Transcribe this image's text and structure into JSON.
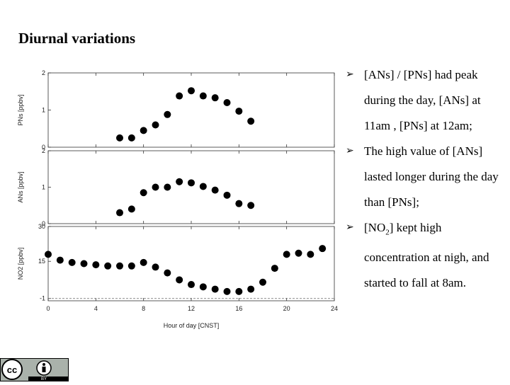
{
  "title": "Diurnal variations",
  "bullets": [
    {
      "parts": [
        "[ANs] / [PNs] had peak during the day, [ANs] at 11am , [PNs] at 12am;"
      ]
    },
    {
      "parts": [
        "The high value of [ANs] lasted longer during the day than [PNs];"
      ]
    },
    {
      "parts": [
        "[NO",
        "2",
        "] kept high concentration at nigh, and started to fall at 8am."
      ]
    }
  ],
  "bullet_marker": "➢",
  "license_badge": {
    "cc": "cc",
    "by": "BY"
  },
  "colors": {
    "pns": "#1f35d6",
    "ans": "#2a8a22",
    "no2": "#9b4a2a"
  },
  "chart_data": [
    {
      "type": "scatter",
      "name": "PNs",
      "ylabel": "PNs [ppbv]",
      "ylim": [
        0,
        2
      ],
      "yticks": [
        0,
        1,
        2
      ],
      "x": [
        6,
        7,
        8,
        9,
        10,
        11,
        12,
        13,
        14,
        15,
        16,
        17
      ],
      "y": [
        0.25,
        0.25,
        0.45,
        0.6,
        0.88,
        1.38,
        1.52,
        1.38,
        1.33,
        1.2,
        0.97,
        0.7
      ]
    },
    {
      "type": "scatter",
      "name": "ANs",
      "ylabel": "ANs [ppbv]",
      "ylim": [
        0,
        2
      ],
      "yticks": [
        0,
        1,
        2
      ],
      "x": [
        6,
        7,
        8,
        9,
        10,
        11,
        12,
        13,
        14,
        15,
        16,
        17
      ],
      "y": [
        0.3,
        0.4,
        0.85,
        1.0,
        1.0,
        1.15,
        1.12,
        1.02,
        0.92,
        0.78,
        0.55,
        0.5
      ]
    },
    {
      "type": "scatter",
      "name": "NO2",
      "ylabel": "NO2 [ppbv]",
      "ylim": [
        -2,
        30
      ],
      "yticks": [
        -1,
        15,
        30
      ],
      "dashed_line": -1,
      "x": [
        0,
        1,
        2,
        3,
        4,
        5,
        6,
        7,
        8,
        9,
        10,
        11,
        12,
        13,
        14,
        15,
        16,
        17,
        18,
        19,
        20,
        21,
        22,
        23
      ],
      "y": [
        18,
        15.5,
        14.5,
        14,
        13.5,
        13,
        13,
        13,
        14.5,
        12.5,
        10,
        7,
        5,
        4,
        3,
        2,
        2,
        3,
        6,
        12,
        18,
        18.5,
        18,
        20.5
      ]
    }
  ],
  "xaxis": {
    "label": "Hour of day [CNST]",
    "ticks": [
      0,
      4,
      8,
      12,
      16,
      20,
      24
    ],
    "xlim": [
      0,
      24
    ]
  }
}
